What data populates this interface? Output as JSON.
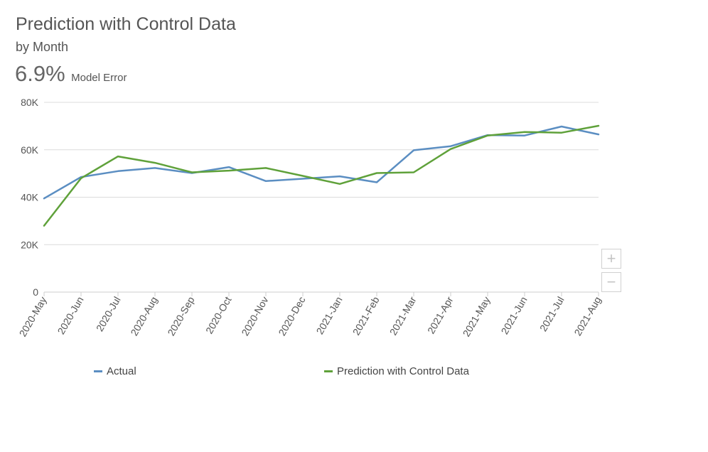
{
  "header": {
    "title": "Prediction with Control Data",
    "subtitle": "by Month",
    "kpi_value": "6.9%",
    "kpi_label": "Model Error"
  },
  "controls": {
    "zoom_in_label": "+",
    "zoom_out_label": "−"
  },
  "chart_data": {
    "type": "line",
    "categories": [
      "2020-May",
      "2020-Jun",
      "2020-Jul",
      "2020-Aug",
      "2020-Sep",
      "2020-Oct",
      "2020-Nov",
      "2020-Dec",
      "2021-Jan",
      "2021-Feb",
      "2021-Mar",
      "2021-Apr",
      "2021-May",
      "2021-Jun",
      "2021-Jul",
      "2021-Aug"
    ],
    "series": [
      {
        "name": "Actual",
        "color": "#5b8ec2",
        "values": [
          39500,
          48500,
          51000,
          52300,
          50200,
          52700,
          46800,
          47800,
          48800,
          46300,
          59800,
          61500,
          66200,
          66000,
          69800,
          66500
        ]
      },
      {
        "name": "Prediction with Control Data",
        "color": "#5fa13a",
        "values": [
          28000,
          48000,
          57200,
          54500,
          50500,
          51200,
          52300,
          49000,
          45600,
          50200,
          50500,
          60300,
          66000,
          67500,
          67200,
          70100
        ]
      }
    ],
    "ylim": [
      0,
      80000
    ],
    "yticks": [
      0,
      20000,
      40000,
      60000,
      80000
    ],
    "ytick_labels": [
      "0",
      "20K",
      "40K",
      "60K",
      "80K"
    ],
    "grid": true,
    "legend": "bottom",
    "xlabel": "",
    "ylabel": ""
  }
}
